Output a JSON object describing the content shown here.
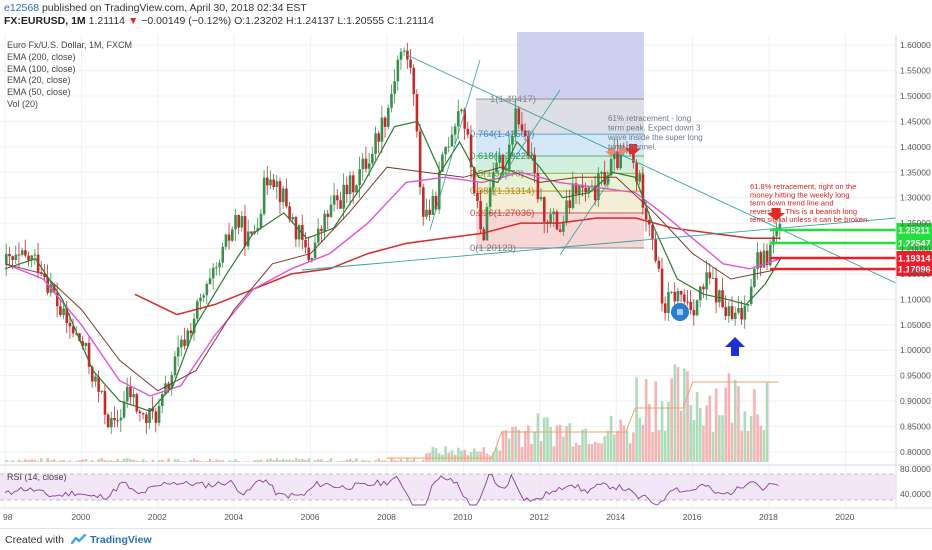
{
  "header": {
    "user": "e12568",
    "published": "published on TradingView.com, April 30, 2018 02:34 EST",
    "symbol": "FX:EURUSD, 1M",
    "last": "1.21114",
    "change": "−0.00149 (−0.12%)",
    "ohlc": "O:1.23202 H:1.24137 L:1.20555 C:1.21114"
  },
  "legend": {
    "title": "Euro Fx/U.S. Dollar, 1M, FXCM",
    "items": [
      "EMA (200, close)",
      "EMA (100, close)",
      "EMA (20, close)",
      "EMA (50, close)",
      "Vol (20)"
    ]
  },
  "rsi_label": "RSI (14, close)",
  "footer": {
    "created": "Created with",
    "brand": "TradingView"
  },
  "colors": {
    "up": "#3a8f4e",
    "down": "#c22c2c",
    "ema200": "#d32b2b",
    "ema100": "#e055d8",
    "ema20": "#2d7a2d",
    "ema50": "#7b3b2e",
    "fib_box": "#c5c8ec",
    "green_level": "#21e03a",
    "red_level": "#ef1c2b"
  },
  "annotations": {
    "note1": [
      "61% retracement - long",
      "term peak. Expect down 3",
      "wave inside the super long",
      "term channel."
    ],
    "note2": [
      "61.8% retracement, right on the",
      "money hitting the weekly long",
      "term down trend line and",
      "reversing. This is a bearish long",
      "term signal unless it can be broken."
    ]
  },
  "fib_labels": [
    "1(1.49417)",
    "0.764(1.42503)",
    "0.618(1.38225)",
    "0.5(1.34770)",
    "0.382(1.31314)",
    "0.236(1.27036)",
    "0(1.20123)"
  ],
  "chart_data": [
    {
      "type": "candlestick",
      "title": "Euro Fx/U.S. Dollar, 1M, FXCM",
      "x": [
        "1998",
        "1999",
        "2000",
        "2001",
        "2002",
        "2003",
        "2004",
        "2005",
        "2006",
        "2007",
        "2008",
        "2009",
        "2010",
        "2011",
        "2012",
        "2013",
        "2014",
        "2015",
        "2016",
        "2017",
        "2018"
      ],
      "close": [
        1.16,
        1.05,
        0.93,
        0.89,
        1.04,
        1.25,
        1.36,
        1.18,
        1.32,
        1.47,
        1.4,
        1.43,
        1.34,
        1.3,
        1.32,
        1.38,
        1.21,
        1.09,
        1.05,
        1.2,
        1.21
      ],
      "x_tick_labels": [
        "98",
        "2000",
        "2002",
        "2004",
        "2006",
        "2008",
        "2010",
        "2012",
        "2014",
        "2016",
        "2018",
        "2020"
      ],
      "y_tick_labels": [
        "0.80000",
        "0.85000",
        "0.90000",
        "0.95000",
        "1.00000",
        "1.05000",
        "1.10000",
        "1.15000",
        "1.20000",
        "1.25000",
        "1.30000",
        "1.35000",
        "1.40000",
        "1.45000",
        "1.50000",
        "1.55000",
        "1.60000"
      ],
      "ylim": [
        0.78,
        1.62
      ],
      "series": [
        {
          "name": "EMA (200, close)",
          "values": [
            null,
            null,
            null,
            null,
            null,
            null,
            null,
            1.14,
            1.16,
            1.19,
            1.21,
            1.22,
            1.23,
            1.24,
            1.25,
            1.25,
            1.24,
            1.23,
            1.22,
            1.21,
            1.21
          ]
        },
        {
          "name": "EMA (100, close)",
          "values": [
            null,
            null,
            null,
            null,
            null,
            1.02,
            1.1,
            1.16,
            1.18,
            1.25,
            1.3,
            1.33,
            1.34,
            1.35,
            1.34,
            1.33,
            1.29,
            1.22,
            1.17,
            1.16,
            1.18
          ]
        },
        {
          "name": "EMA (20, close)",
          "values": [
            1.15,
            1.09,
            0.97,
            0.91,
            0.97,
            1.14,
            1.24,
            1.22,
            1.23,
            1.38,
            1.42,
            1.38,
            1.36,
            1.36,
            1.3,
            1.34,
            1.26,
            1.12,
            1.09,
            1.15,
            1.19
          ]
        },
        {
          "name": "EMA (50, close)",
          "values": [
            null,
            null,
            1.1,
            1.01,
            0.93,
            0.97,
            1.09,
            1.17,
            1.2,
            1.3,
            1.36,
            1.36,
            1.35,
            1.35,
            1.33,
            1.34,
            1.32,
            1.25,
            1.2,
            1.16,
            1.17
          ]
        }
      ],
      "levels": [
        {
          "label": "1.25211",
          "color": "green"
        },
        {
          "label": "1.22547",
          "color": "green"
        },
        {
          "label": "1.19314",
          "color": "red"
        },
        {
          "label": "1.17096",
          "color": "red"
        }
      ]
    },
    {
      "type": "line",
      "title": "RSI (14, close)",
      "y_tick_labels": [
        "80.0000",
        "40.0000"
      ],
      "ylim": [
        25,
        90
      ]
    }
  ]
}
